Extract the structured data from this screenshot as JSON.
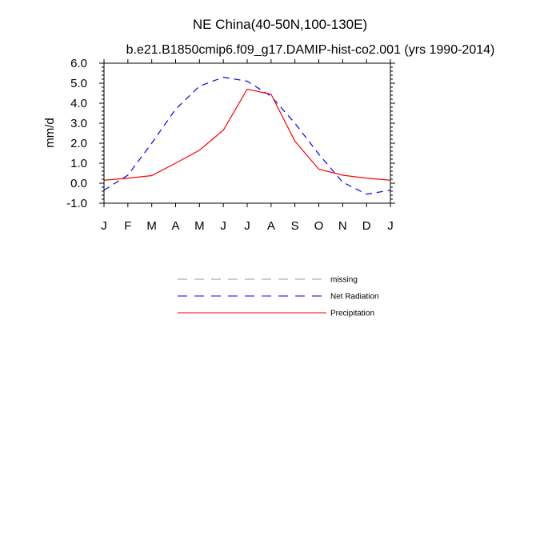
{
  "chart_data": {
    "type": "line",
    "title": "NE China(40-50N,100-130E)",
    "subtitle": "b.e21.B1850cmip6.f09_g17.DAMIP-hist-co2.001 (yrs 1990-2014)",
    "xlabel": "",
    "ylabel": "mm/d",
    "x_tick_labels": [
      "J",
      "F",
      "M",
      "A",
      "M",
      "J",
      "J",
      "A",
      "S",
      "O",
      "N",
      "D",
      "J"
    ],
    "y_tick_labels": [
      "-1.0",
      "0.0",
      "1.0",
      "2.0",
      "3.0",
      "4.0",
      "5.0",
      "6.0"
    ],
    "ylim": [
      -1.0,
      6.0
    ],
    "xlim": [
      0,
      12
    ],
    "grid": false,
    "legend_position": "below",
    "series": [
      {
        "name": "missing",
        "color": "#999999",
        "dash": "dashed",
        "x": [],
        "values": []
      },
      {
        "name": "Net Radiation",
        "color": "#0000ff",
        "dash": "dashed",
        "x": [
          0,
          1,
          2,
          3,
          4,
          5,
          6,
          7,
          8,
          9,
          10,
          11,
          12
        ],
        "values": [
          -0.35,
          0.4,
          2.0,
          3.7,
          4.85,
          5.3,
          5.1,
          4.35,
          3.0,
          1.45,
          0.05,
          -0.55,
          -0.35
        ]
      },
      {
        "name": "Precipitation",
        "color": "#ff0000",
        "dash": "solid",
        "x": [
          0,
          1,
          2,
          3,
          4,
          5,
          6,
          7,
          8,
          9,
          10,
          11,
          12
        ],
        "values": [
          0.15,
          0.25,
          0.38,
          1.0,
          1.65,
          2.65,
          4.7,
          4.45,
          2.1,
          0.7,
          0.4,
          0.25,
          0.15
        ]
      }
    ]
  }
}
